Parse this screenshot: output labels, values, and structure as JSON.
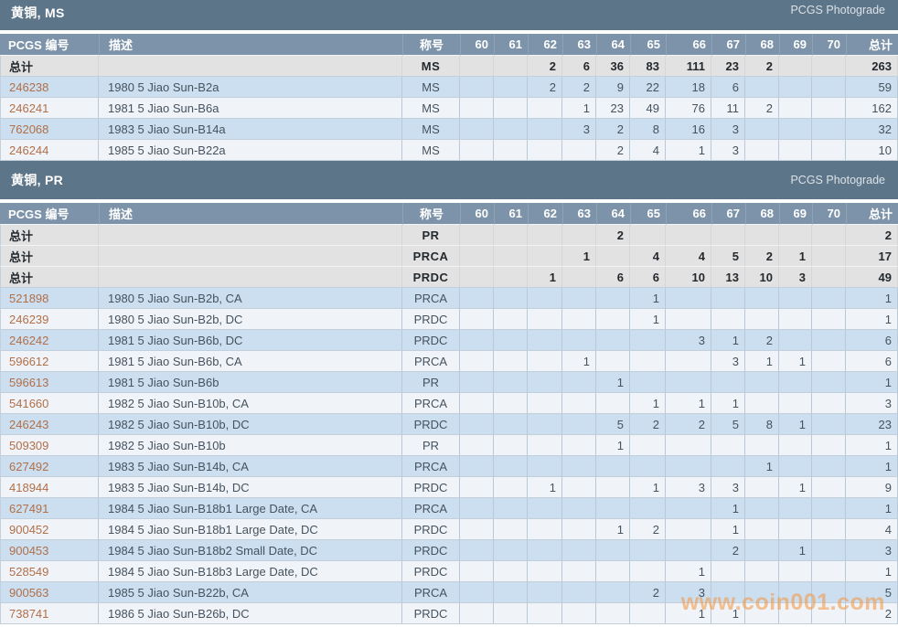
{
  "watermark": "www.coin001.com",
  "columns": {
    "id": "PCGS 编号",
    "desc": "描述",
    "designation": "称号",
    "grades": [
      "60",
      "61",
      "62",
      "63",
      "64",
      "65",
      "66",
      "67",
      "68",
      "69",
      "70"
    ],
    "total": "总计"
  },
  "summary_label": "总计",
  "tables": [
    {
      "title": "黄铜, MS",
      "brand": "PCGS Photograde",
      "summary_rows": [
        {
          "designation": "MS",
          "values": [
            "",
            "",
            "2",
            "6",
            "36",
            "83",
            "111",
            "23",
            "2",
            "",
            ""
          ],
          "total": "263"
        }
      ],
      "rows": [
        {
          "id": "246238",
          "desc": "1980 5 Jiao Sun-B2a",
          "designation": "MS",
          "values": [
            "",
            "",
            "2",
            "2",
            "9",
            "22",
            "18",
            "6",
            "",
            "",
            ""
          ],
          "total": "59"
        },
        {
          "id": "246241",
          "desc": "1981 5 Jiao Sun-B6a",
          "designation": "MS",
          "values": [
            "",
            "",
            "",
            "1",
            "23",
            "49",
            "76",
            "11",
            "2",
            "",
            ""
          ],
          "total": "162"
        },
        {
          "id": "762068",
          "desc": "1983 5 Jiao Sun-B14a",
          "designation": "MS",
          "values": [
            "",
            "",
            "",
            "3",
            "2",
            "8",
            "16",
            "3",
            "",
            "",
            ""
          ],
          "total": "32"
        },
        {
          "id": "246244",
          "desc": "1985 5 Jiao Sun-B22a",
          "designation": "MS",
          "values": [
            "",
            "",
            "",
            "",
            "2",
            "4",
            "1",
            "3",
            "",
            "",
            ""
          ],
          "total": "10"
        }
      ]
    },
    {
      "title": "黄铜, PR",
      "brand": "PCGS Photograde",
      "summary_rows": [
        {
          "designation": "PR",
          "values": [
            "",
            "",
            "",
            "",
            "2",
            "",
            "",
            "",
            "",
            "",
            ""
          ],
          "total": "2"
        },
        {
          "designation": "PRCA",
          "values": [
            "",
            "",
            "",
            "1",
            "",
            "4",
            "4",
            "5",
            "2",
            "1",
            ""
          ],
          "total": "17"
        },
        {
          "designation": "PRDC",
          "values": [
            "",
            "",
            "1",
            "",
            "6",
            "6",
            "10",
            "13",
            "10",
            "3",
            ""
          ],
          "total": "49"
        }
      ],
      "rows": [
        {
          "id": "521898",
          "desc": "1980 5 Jiao Sun-B2b, CA",
          "designation": "PRCA",
          "values": [
            "",
            "",
            "",
            "",
            "",
            "1",
            "",
            "",
            "",
            "",
            ""
          ],
          "total": "1"
        },
        {
          "id": "246239",
          "desc": "1980 5 Jiao Sun-B2b, DC",
          "designation": "PRDC",
          "values": [
            "",
            "",
            "",
            "",
            "",
            "1",
            "",
            "",
            "",
            "",
            ""
          ],
          "total": "1"
        },
        {
          "id": "246242",
          "desc": "1981 5 Jiao Sun-B6b, DC",
          "designation": "PRDC",
          "values": [
            "",
            "",
            "",
            "",
            "",
            "",
            "3",
            "1",
            "2",
            "",
            ""
          ],
          "total": "6"
        },
        {
          "id": "596612",
          "desc": "1981 5 Jiao Sun-B6b, CA",
          "designation": "PRCA",
          "values": [
            "",
            "",
            "",
            "1",
            "",
            "",
            "",
            "3",
            "1",
            "1",
            ""
          ],
          "total": "6"
        },
        {
          "id": "596613",
          "desc": "1981 5 Jiao Sun-B6b",
          "designation": "PR",
          "values": [
            "",
            "",
            "",
            "",
            "1",
            "",
            "",
            "",
            "",
            "",
            ""
          ],
          "total": "1"
        },
        {
          "id": "541660",
          "desc": "1982 5 Jiao Sun-B10b, CA",
          "designation": "PRCA",
          "values": [
            "",
            "",
            "",
            "",
            "",
            "1",
            "1",
            "1",
            "",
            "",
            ""
          ],
          "total": "3"
        },
        {
          "id": "246243",
          "desc": "1982 5 Jiao Sun-B10b, DC",
          "designation": "PRDC",
          "values": [
            "",
            "",
            "",
            "",
            "5",
            "2",
            "2",
            "5",
            "8",
            "1",
            ""
          ],
          "total": "23"
        },
        {
          "id": "509309",
          "desc": "1982 5 Jiao Sun-B10b",
          "designation": "PR",
          "values": [
            "",
            "",
            "",
            "",
            "1",
            "",
            "",
            "",
            "",
            "",
            ""
          ],
          "total": "1"
        },
        {
          "id": "627492",
          "desc": "1983 5 Jiao Sun-B14b, CA",
          "designation": "PRCA",
          "values": [
            "",
            "",
            "",
            "",
            "",
            "",
            "",
            "",
            "1",
            "",
            ""
          ],
          "total": "1"
        },
        {
          "id": "418944",
          "desc": "1983 5 Jiao Sun-B14b, DC",
          "designation": "PRDC",
          "values": [
            "",
            "",
            "1",
            "",
            "",
            "1",
            "3",
            "3",
            "",
            "1",
            ""
          ],
          "total": "9"
        },
        {
          "id": "627491",
          "desc": "1984 5 Jiao Sun-B18b1 Large Date, CA",
          "designation": "PRCA",
          "values": [
            "",
            "",
            "",
            "",
            "",
            "",
            "",
            "1",
            "",
            "",
            ""
          ],
          "total": "1"
        },
        {
          "id": "900452",
          "desc": "1984 5 Jiao Sun-B18b1 Large Date, DC",
          "designation": "PRDC",
          "values": [
            "",
            "",
            "",
            "",
            "1",
            "2",
            "",
            "1",
            "",
            "",
            ""
          ],
          "total": "4"
        },
        {
          "id": "900453",
          "desc": "1984 5 Jiao Sun-B18b2 Small Date, DC",
          "designation": "PRDC",
          "values": [
            "",
            "",
            "",
            "",
            "",
            "",
            "",
            "2",
            "",
            "1",
            ""
          ],
          "total": "3"
        },
        {
          "id": "528549",
          "desc": "1984 5 Jiao Sun-B18b3 Large Date, DC",
          "designation": "PRDC",
          "values": [
            "",
            "",
            "",
            "",
            "",
            "",
            "1",
            "",
            "",
            "",
            ""
          ],
          "total": "1"
        },
        {
          "id": "900563",
          "desc": "1985 5 Jiao Sun-B22b, CA",
          "designation": "PRCA",
          "values": [
            "",
            "",
            "",
            "",
            "",
            "2",
            "3",
            "",
            "",
            "",
            ""
          ],
          "total": "5"
        },
        {
          "id": "738741",
          "desc": "1986 5 Jiao Sun-B26b, DC",
          "designation": "PRDC",
          "values": [
            "",
            "",
            "",
            "",
            "",
            "",
            "1",
            "1",
            "",
            "",
            ""
          ],
          "total": "2"
        }
      ]
    }
  ]
}
